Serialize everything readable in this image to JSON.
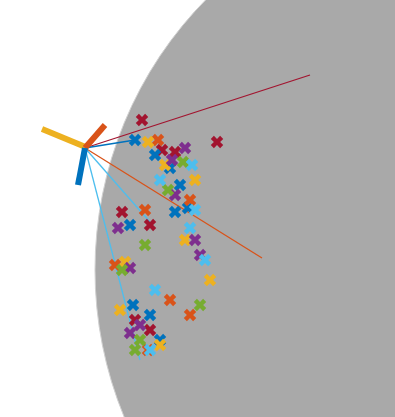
{
  "chart_data": {
    "type": "scatter",
    "xlim": [
      0,
      395
    ],
    "ylim": [
      417,
      0
    ],
    "tick_labels": false,
    "grid": false,
    "sphere": {
      "x": 480,
      "y": 270,
      "r": 385,
      "color": "#a9a9a9"
    },
    "series": [
      {
        "type": "line",
        "line_style": "solid",
        "color": "#A2142F",
        "x": [
          85,
          310
        ],
        "y": [
          148,
          75
        ]
      },
      {
        "type": "line",
        "line_style": "solid",
        "color": "#D95319",
        "x": [
          85,
          262
        ],
        "y": [
          148,
          258
        ]
      },
      {
        "type": "line",
        "line_style": "solid",
        "color": "#4DBEEE",
        "x": [
          85,
          150
        ],
        "y": [
          148,
          222
        ]
      },
      {
        "type": "line",
        "line_style": "solid",
        "color": "#4DBEEE",
        "x": [
          85,
          140
        ],
        "y": [
          148,
          360
        ]
      },
      {
        "type": "line",
        "line_style": "solid",
        "color": "#0072BD",
        "x": [
          85,
          135
        ],
        "y": [
          148,
          140
        ]
      },
      {
        "type": "line",
        "line_style": "thick",
        "color": "#EDB120",
        "x": [
          42,
          88
        ],
        "y": [
          129,
          148
        ]
      },
      {
        "type": "line",
        "line_style": "thick",
        "color": "#D95319",
        "x": [
          85,
          105
        ],
        "y": [
          148,
          125
        ]
      },
      {
        "type": "line",
        "line_style": "thick",
        "color": "#0072BD",
        "x": [
          85,
          78
        ],
        "y": [
          148,
          185
        ]
      },
      {
        "type": "scatter",
        "marker": "x",
        "color": "#A2142F",
        "x": [
          142,
          217,
          162,
          175,
          122,
          150,
          135,
          150
        ],
        "y": [
          120,
          142,
          150,
          152,
          212,
          225,
          320,
          330
        ]
      },
      {
        "type": "scatter",
        "marker": "x",
        "color": "#0072BD",
        "x": [
          135,
          155,
          170,
          180,
          175,
          130,
          188,
          133,
          150,
          160
        ],
        "y": [
          140,
          155,
          168,
          185,
          212,
          225,
          208,
          305,
          315,
          340
        ]
      },
      {
        "type": "scatter",
        "marker": "x",
        "color": "#D95319",
        "x": [
          158,
          190,
          145,
          170,
          115,
          190,
          148
        ],
        "y": [
          140,
          200,
          210,
          300,
          265,
          315,
          350
        ]
      },
      {
        "type": "scatter",
        "marker": "x",
        "color": "#EDB120",
        "x": [
          148,
          165,
          195,
          185,
          125,
          210,
          120,
          160
        ],
        "y": [
          142,
          165,
          180,
          240,
          262,
          280,
          310,
          345
        ]
      },
      {
        "type": "scatter",
        "marker": "x",
        "color": "#7E2F8E",
        "x": [
          172,
          185,
          175,
          118,
          195,
          130,
          200,
          140,
          130
        ],
        "y": [
          160,
          148,
          195,
          228,
          240,
          268,
          255,
          325,
          333
        ]
      },
      {
        "type": "scatter",
        "marker": "x",
        "color": "#77AC30",
        "x": [
          183,
          168,
          145,
          122,
          200,
          140,
          135
        ],
        "y": [
          162,
          190,
          245,
          270,
          305,
          340,
          350
        ]
      },
      {
        "type": "scatter",
        "marker": "x",
        "color": "#4DBEEE",
        "x": [
          192,
          160,
          195,
          190,
          205,
          155,
          150
        ],
        "y": [
          165,
          180,
          210,
          228,
          260,
          290,
          350
        ]
      }
    ]
  }
}
